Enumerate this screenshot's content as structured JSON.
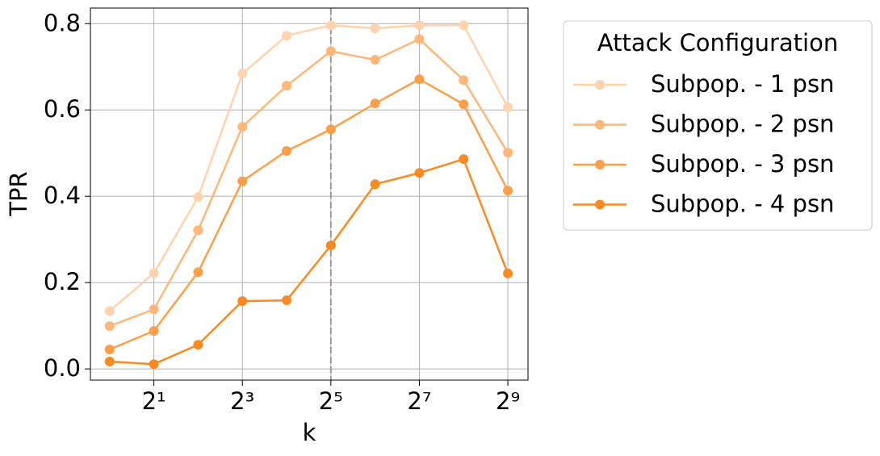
{
  "chart_data": {
    "type": "line",
    "x_label": "k",
    "y_label": "TPR",
    "x": [
      1,
      2,
      4,
      8,
      16,
      32,
      64,
      128,
      256,
      512
    ],
    "xscale": "log2",
    "xlim": [
      0.74,
      702
    ],
    "ylim": [
      -0.026,
      0.836
    ],
    "xticks": [
      {
        "value": 2,
        "label": "2¹"
      },
      {
        "value": 8,
        "label": "2³"
      },
      {
        "value": 32,
        "label": "2⁵"
      },
      {
        "value": 128,
        "label": "2⁷"
      },
      {
        "value": 512,
        "label": "2⁹"
      }
    ],
    "yticks": [
      {
        "value": 0,
        "label": "0.0"
      },
      0.2,
      0.4,
      0.6,
      0.8
    ],
    "grid": true,
    "vline": 32,
    "legend_title": "Attack Configuration",
    "legend_position": "outside-right",
    "series": [
      {
        "name": "Subpop. - 1 psn",
        "color": "#ffd3ae",
        "values": [
          0.134,
          0.222,
          0.398,
          0.684,
          0.772,
          0.796,
          0.789,
          0.796,
          0.796,
          0.606
        ]
      },
      {
        "name": "Subpop. - 2 psn",
        "color": "#ffb77a",
        "values": [
          0.099,
          0.138,
          0.321,
          0.561,
          0.656,
          0.736,
          0.716,
          0.764,
          0.669,
          0.501
        ]
      },
      {
        "name": "Subpop. - 3 psn",
        "color": "#ff9f4a",
        "values": [
          0.045,
          0.088,
          0.224,
          0.435,
          0.505,
          0.555,
          0.615,
          0.671,
          0.613,
          0.413
        ]
      },
      {
        "name": "Subpop. - 4 psn",
        "color": "#fb8a22",
        "values": [
          0.017,
          0.011,
          0.056,
          0.157,
          0.159,
          0.286,
          0.428,
          0.454,
          0.486,
          0.221
        ]
      }
    ]
  }
}
